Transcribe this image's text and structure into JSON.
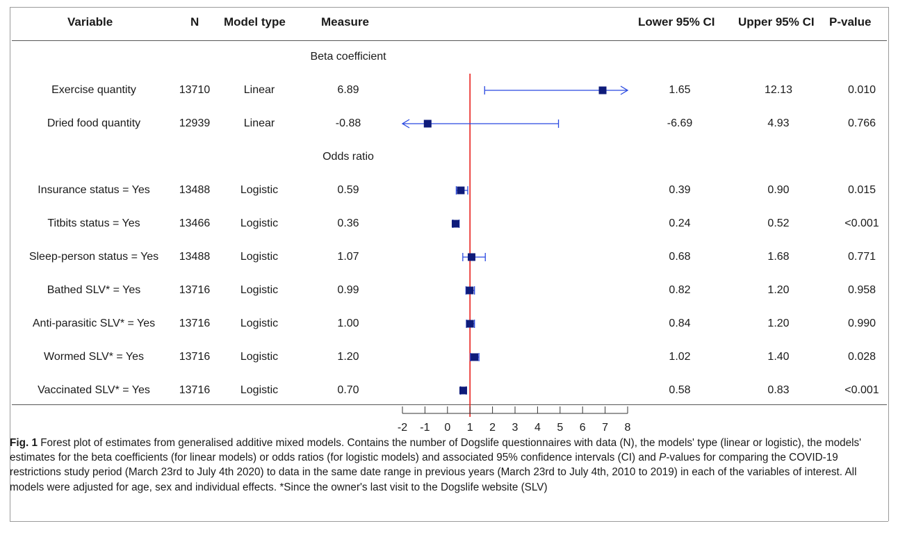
{
  "table": {
    "headers": {
      "variable": "Variable",
      "n": "N",
      "model_type": "Model type",
      "measure": "Measure",
      "lower": "Lower 95% CI",
      "upper": "Upper 95% CI",
      "p": "P-value"
    },
    "sections": [
      {
        "label": "Beta coefficient",
        "rows": [
          {
            "variable": "Exercise quantity",
            "n": "13710",
            "model": "Linear",
            "measure": "6.89",
            "lower": "1.65",
            "upper": "12.13",
            "p": "0.010"
          },
          {
            "variable": "Dried food quantity",
            "n": "12939",
            "model": "Linear",
            "measure": "-0.88",
            "lower": "-6.69",
            "upper": "4.93",
            "p": "0.766"
          }
        ]
      },
      {
        "label": "Odds ratio",
        "rows": [
          {
            "variable": "Insurance status = Yes",
            "n": "13488",
            "model": "Logistic",
            "measure": "0.59",
            "lower": "0.39",
            "upper": "0.90",
            "p": "0.015"
          },
          {
            "variable": "Titbits status = Yes",
            "n": "13466",
            "model": "Logistic",
            "measure": "0.36",
            "lower": "0.24",
            "upper": "0.52",
            "p": "<0.001"
          },
          {
            "variable": "Sleep-person status = Yes",
            "n": "13488",
            "model": "Logistic",
            "measure": "1.07",
            "lower": "0.68",
            "upper": "1.68",
            "p": "0.771"
          },
          {
            "variable": "Bathed SLV* = Yes",
            "n": "13716",
            "model": "Logistic",
            "measure": "0.99",
            "lower": "0.82",
            "upper": "1.20",
            "p": "0.958"
          },
          {
            "variable": "Anti-parasitic SLV* = Yes",
            "n": "13716",
            "model": "Logistic",
            "measure": "1.00",
            "lower": "0.84",
            "upper": "1.20",
            "p": "0.990"
          },
          {
            "variable": "Wormed SLV* = Yes",
            "n": "13716",
            "model": "Logistic",
            "measure": "1.20",
            "lower": "1.02",
            "upper": "1.40",
            "p": "0.028"
          },
          {
            "variable": "Vaccinated SLV* = Yes",
            "n": "13716",
            "model": "Logistic",
            "measure": "0.70",
            "lower": "0.58",
            "upper": "0.83",
            "p": "<0.001"
          }
        ]
      }
    ]
  },
  "chart_data": {
    "type": "forest",
    "x_ticks": [
      -2,
      -1,
      0,
      1,
      2,
      3,
      4,
      5,
      6,
      7,
      8
    ],
    "xlim": [
      -2,
      8
    ],
    "reference_line": 1,
    "reference_color": "#e8201c",
    "marker_color": "#0e1b7a",
    "ci_color": "#2848e0",
    "points": [
      {
        "variable": "Exercise quantity",
        "estimate": 6.89,
        "lower": 1.65,
        "upper": 12.13,
        "clipped_upper": true,
        "clipped_lower": false
      },
      {
        "variable": "Dried food quantity",
        "estimate": -0.88,
        "lower": -6.69,
        "upper": 4.93,
        "clipped_upper": false,
        "clipped_lower": true
      },
      {
        "variable": "Insurance status = Yes",
        "estimate": 0.59,
        "lower": 0.39,
        "upper": 0.9
      },
      {
        "variable": "Titbits status = Yes",
        "estimate": 0.36,
        "lower": 0.24,
        "upper": 0.52
      },
      {
        "variable": "Sleep-person status = Yes",
        "estimate": 1.07,
        "lower": 0.68,
        "upper": 1.68
      },
      {
        "variable": "Bathed SLV* = Yes",
        "estimate": 0.99,
        "lower": 0.82,
        "upper": 1.2
      },
      {
        "variable": "Anti-parasitic SLV* = Yes",
        "estimate": 1.0,
        "lower": 0.84,
        "upper": 1.2
      },
      {
        "variable": "Wormed SLV* = Yes",
        "estimate": 1.2,
        "lower": 1.02,
        "upper": 1.4
      },
      {
        "variable": "Vaccinated SLV* = Yes",
        "estimate": 0.7,
        "lower": 0.58,
        "upper": 0.83
      }
    ]
  },
  "caption": {
    "fig_label": "Fig. 1",
    "text_1": " Forest plot of estimates from generalised additive mixed models. Contains the number of Dogslife questionnaires with data (N), the models' type (linear or logistic), the models' estimates for the beta coefficients (for linear models) or odds ratios (for logistic models) and associated 95% confidence intervals (CI) and ",
    "italic_p": "P",
    "text_2": "-values for comparing the COVID-19 restrictions study period (March 23rd to July 4th 2020) to data in the same date range in previous years (March 23rd to July 4th, 2010 to 2019) in each of the variables of interest. All models were adjusted for age, sex and individual effects. *Since the owner's last visit to the Dogslife website (SLV)"
  }
}
